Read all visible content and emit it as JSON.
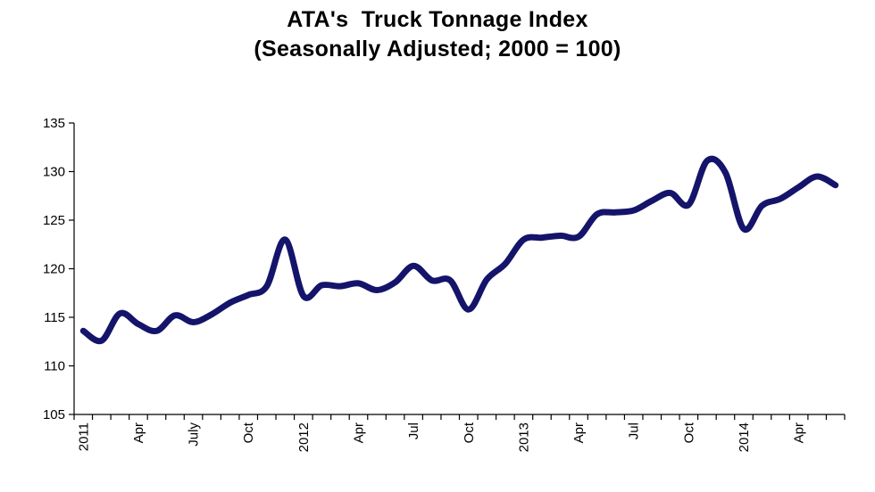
{
  "chart_data": {
    "type": "line",
    "title": "ATA's  Truck Tonnage Index",
    "subtitle": "(Seasonally Adjusted; 2000 = 100)",
    "xlabel": "",
    "ylabel": "",
    "ylim": [
      105,
      135
    ],
    "yticks": [
      105,
      110,
      115,
      120,
      125,
      130,
      135
    ],
    "grid": false,
    "legend": "none",
    "line_color": "#14146b",
    "x_tick_labels": [
      {
        "index": 0,
        "label": "2011"
      },
      {
        "index": 3,
        "label": "Apr"
      },
      {
        "index": 6,
        "label": "July"
      },
      {
        "index": 9,
        "label": "Oct"
      },
      {
        "index": 12,
        "label": "2012"
      },
      {
        "index": 15,
        "label": "Apr"
      },
      {
        "index": 18,
        "label": "Jul"
      },
      {
        "index": 21,
        "label": "Oct"
      },
      {
        "index": 24,
        "label": "2013"
      },
      {
        "index": 27,
        "label": "Apr"
      },
      {
        "index": 30,
        "label": "Jul"
      },
      {
        "index": 33,
        "label": "Oct"
      },
      {
        "index": 36,
        "label": "2014"
      },
      {
        "index": 39,
        "label": "Apr"
      }
    ],
    "x": [
      "2011-01",
      "2011-02",
      "2011-03",
      "2011-04",
      "2011-05",
      "2011-06",
      "2011-07",
      "2011-08",
      "2011-09",
      "2011-10",
      "2011-11",
      "2011-12",
      "2012-01",
      "2012-02",
      "2012-03",
      "2012-04",
      "2012-05",
      "2012-06",
      "2012-07",
      "2012-08",
      "2012-09",
      "2012-10",
      "2012-11",
      "2012-12",
      "2013-01",
      "2013-02",
      "2013-03",
      "2013-04",
      "2013-05",
      "2013-06",
      "2013-07",
      "2013-08",
      "2013-09",
      "2013-10",
      "2013-11",
      "2013-12",
      "2014-01",
      "2014-02",
      "2014-03",
      "2014-04",
      "2014-05",
      "2014-06"
    ],
    "values": [
      113.6,
      112.6,
      115.4,
      114.3,
      113.6,
      115.2,
      114.5,
      115.3,
      116.5,
      117.3,
      118.2,
      123.0,
      117.2,
      118.3,
      118.2,
      118.5,
      117.8,
      118.6,
      120.3,
      118.8,
      118.8,
      115.8,
      118.9,
      120.5,
      123.0,
      123.2,
      123.4,
      123.3,
      125.6,
      125.8,
      126.0,
      127.0,
      127.8,
      126.6,
      131.1,
      129.9,
      124.1,
      126.5,
      127.2,
      128.4,
      129.5,
      128.6
    ]
  }
}
